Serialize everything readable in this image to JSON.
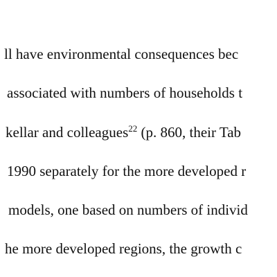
{
  "document": {
    "lines": [
      "ll have environmental consequences bec",
      "associated with numbers of households t",
      "kellar and colleagues",
      "1990 separately for the more developed r",
      "models, one based on numbers of individ",
      "he more developed regions, the growth c"
    ],
    "line3": {
      "before": "kellar and colleagues",
      "superscript": "22",
      "after": " (p. 860, their Tab"
    }
  }
}
